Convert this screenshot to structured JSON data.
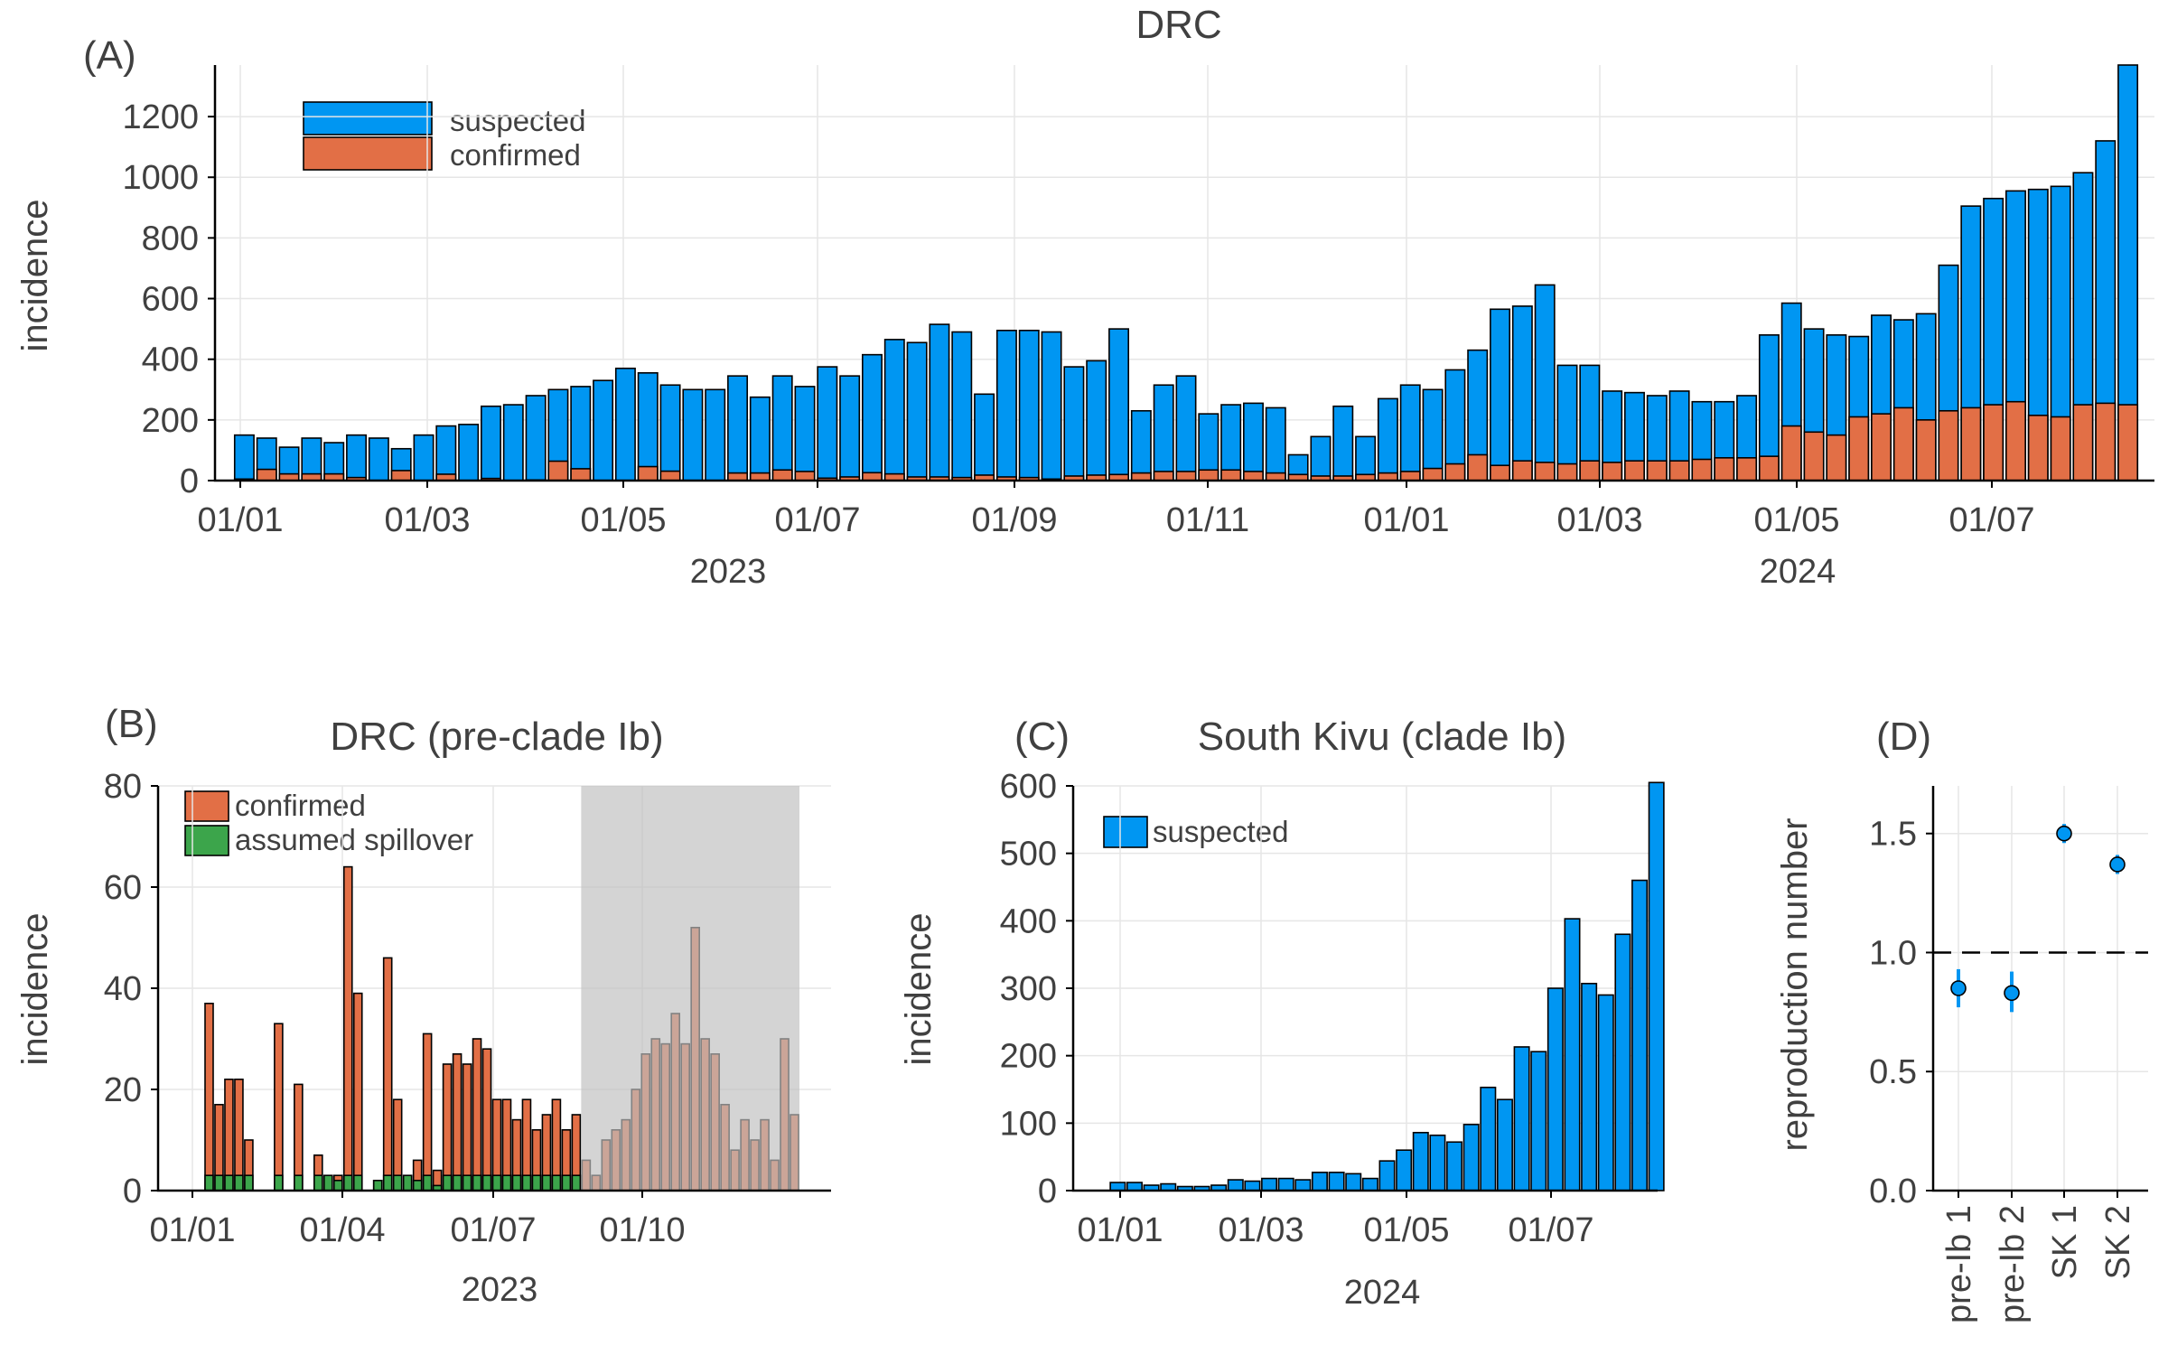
{
  "colors": {
    "suspected": "#0096f2",
    "confirmed": "#e26f46",
    "spillover": "#3ca54b",
    "shade": "#bfbfbf",
    "estimate": "#0096f2"
  },
  "chart_data": [
    {
      "panel": "(A)",
      "type": "bar",
      "title": "DRC",
      "ylabel": "incidence",
      "ylim": [
        0,
        1370
      ],
      "yticks": [
        0,
        200,
        400,
        600,
        800,
        1000,
        1200
      ],
      "x_tick_labels": [
        "01/01",
        "01/03",
        "01/05",
        "01/07",
        "01/09",
        "01/11",
        "01/01",
        "01/03",
        "01/05",
        "01/07"
      ],
      "year_labels": [
        "2023",
        "2024"
      ],
      "legend_position": "top-left",
      "stacked": false,
      "series": [
        {
          "name": "suspected",
          "values": [
            150,
            140,
            110,
            140,
            125,
            150,
            140,
            105,
            150,
            180,
            185,
            245,
            250,
            280,
            300,
            310,
            330,
            370,
            355,
            315,
            300,
            300,
            345,
            275,
            345,
            310,
            375,
            345,
            415,
            465,
            455,
            515,
            490,
            285,
            495,
            495,
            490,
            375,
            395,
            500,
            230,
            315,
            345,
            220,
            250,
            255,
            240,
            85,
            145,
            245,
            145,
            270,
            315,
            300,
            365,
            430,
            565,
            575,
            645,
            380,
            380,
            295,
            290,
            280,
            295,
            260,
            260,
            280,
            480,
            585,
            500,
            480,
            475,
            545,
            530,
            550,
            710,
            905,
            930,
            955,
            960,
            970,
            1015,
            1120,
            1370
          ]
        },
        {
          "name": "confirmed",
          "values": [
            5,
            37,
            22,
            22,
            22,
            10,
            0,
            33,
            0,
            21,
            0,
            7,
            0,
            2,
            64,
            39,
            0,
            0,
            46,
            31,
            0,
            0,
            25,
            25,
            35,
            30,
            8,
            12,
            26,
            22,
            12,
            12,
            10,
            18,
            12,
            10,
            5,
            15,
            18,
            20,
            25,
            30,
            30,
            35,
            35,
            30,
            25,
            20,
            15,
            15,
            20,
            25,
            30,
            40,
            55,
            85,
            50,
            65,
            60,
            55,
            65,
            60,
            65,
            65,
            65,
            70,
            75,
            75,
            80,
            180,
            160,
            150,
            210,
            220,
            240,
            200,
            230,
            240,
            250,
            260,
            215,
            210,
            250,
            255,
            250
          ]
        }
      ]
    },
    {
      "panel": "(B)",
      "type": "bar",
      "title": "DRC (pre-clade Ib)",
      "xlabel": "2023",
      "ylabel": "incidence",
      "ylim": [
        0,
        80
      ],
      "yticks": [
        0,
        20,
        40,
        60,
        80
      ],
      "x_tick_labels": [
        "01/01",
        "01/04",
        "01/07",
        "01/10"
      ],
      "legend_position": "top-left",
      "shaded_from_bar": 38,
      "series": [
        {
          "name": "confirmed",
          "values": [
            37,
            17,
            22,
            22,
            10,
            0,
            0,
            33,
            0,
            21,
            0,
            7,
            0,
            3,
            64,
            39,
            0,
            2,
            46,
            18,
            0,
            6,
            31,
            4,
            25,
            27,
            25,
            30,
            28,
            18,
            18,
            14,
            18,
            12,
            15,
            18,
            12,
            15,
            6,
            3,
            10,
            12,
            14,
            20,
            27,
            30,
            29,
            35,
            29,
            52,
            30,
            27,
            17,
            8,
            14,
            10,
            14,
            6,
            30,
            15
          ]
        },
        {
          "name": "assumed spillover",
          "values": [
            3,
            3,
            3,
            3,
            3,
            0,
            0,
            3,
            0,
            3,
            0,
            3,
            3,
            2,
            3,
            3,
            0,
            2,
            3,
            3,
            3,
            2,
            3,
            1,
            3,
            3,
            3,
            3,
            3,
            3,
            3,
            3,
            3,
            3,
            3,
            3,
            3,
            3,
            0,
            0,
            0,
            0,
            0,
            0,
            0,
            0,
            0,
            0,
            0,
            0,
            0,
            0,
            0,
            0,
            0,
            0,
            0,
            0,
            0,
            0
          ]
        }
      ]
    },
    {
      "panel": "(C)",
      "type": "bar",
      "title": "South Kivu (clade Ib)",
      "xlabel": "2024",
      "ylabel": "incidence",
      "ylim": [
        0,
        600
      ],
      "yticks": [
        0,
        100,
        200,
        300,
        400,
        500,
        600
      ],
      "x_tick_labels": [
        "01/01",
        "01/03",
        "01/05",
        "01/07"
      ],
      "legend_position": "top-left",
      "series": [
        {
          "name": "suspected",
          "values": [
            12,
            12,
            8,
            10,
            6,
            6,
            8,
            16,
            14,
            18,
            18,
            16,
            27,
            27,
            25,
            18,
            44,
            60,
            86,
            82,
            72,
            98,
            153,
            135,
            213,
            206,
            300,
            403,
            307,
            290,
            380,
            460,
            605
          ]
        }
      ]
    },
    {
      "panel": "(D)",
      "type": "scatter",
      "ylabel": "reproduction number",
      "ylim": [
        0,
        1.7
      ],
      "yticks": [
        "0.0",
        "0.5",
        "1.0",
        "1.5"
      ],
      "reference_line": 1.0,
      "categories": [
        "pre-Ib 1",
        "pre-Ib 2",
        "SK 1",
        "SK 2"
      ],
      "values": [
        0.85,
        0.83,
        1.5,
        1.37
      ],
      "intervals": [
        [
          0.77,
          0.93
        ],
        [
          0.75,
          0.92
        ],
        [
          1.46,
          1.54
        ],
        [
          1.33,
          1.41
        ]
      ]
    }
  ]
}
